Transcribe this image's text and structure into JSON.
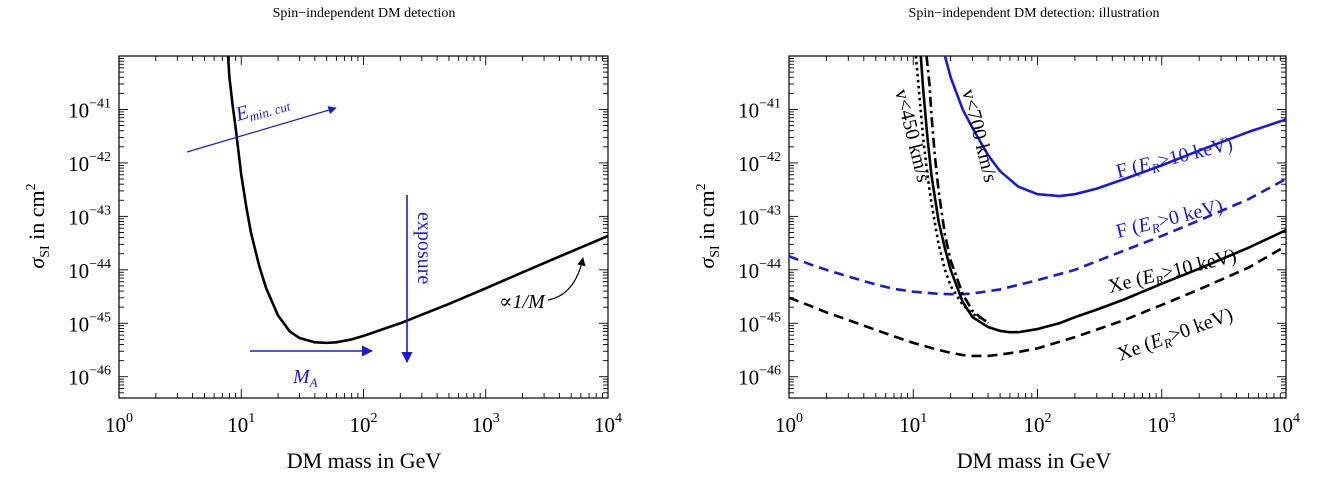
{
  "chart_data": [
    {
      "type": "line",
      "title": "Spin−independent DM detection",
      "xlabel": "DM mass in GeV",
      "ylabel_main": "σ",
      "ylabel_sub": "SI",
      "ylabel_rest": " in cm",
      "ylabel_sup": "2",
      "xscale": "log",
      "yscale": "log",
      "xlim": [
        1,
        10000
      ],
      "ylim": [
        4e-47,
        1e-40
      ],
      "xticks": [
        {
          "base": "10",
          "exp": "0",
          "v": 1
        },
        {
          "base": "10",
          "exp": "1",
          "v": 10
        },
        {
          "base": "10",
          "exp": "2",
          "v": 100
        },
        {
          "base": "10",
          "exp": "3",
          "v": 1000
        },
        {
          "base": "10",
          "exp": "4",
          "v": 10000
        }
      ],
      "yticks": [
        {
          "base": "10",
          "exp": "−46",
          "v": 1e-46
        },
        {
          "base": "10",
          "exp": "−45",
          "v": 1e-45
        },
        {
          "base": "10",
          "exp": "−44",
          "v": 1e-44
        },
        {
          "base": "10",
          "exp": "−43",
          "v": 1e-43
        },
        {
          "base": "10",
          "exp": "−42",
          "v": 1e-42
        },
        {
          "base": "10",
          "exp": "−41",
          "v": 1e-41
        }
      ],
      "series": [
        {
          "color": "#000000",
          "dash": "solid",
          "x": [
            7.8,
            8,
            8.5,
            9,
            10,
            11,
            12,
            14,
            16,
            20,
            25,
            30,
            40,
            50,
            60,
            80,
            100,
            150,
            200,
            300,
            500,
            1000,
            2000,
            5000,
            10000
          ],
          "y": [
            1e-40,
            4e-41,
            1.2e-41,
            4.5e-42,
            6e-43,
            1.5e-43,
            5e-44,
            1.2e-44,
            4.5e-45,
            1.4e-45,
            7e-46,
            5.3e-46,
            4.4e-46,
            4.3e-46,
            4.4e-46,
            5e-46,
            5.8e-46,
            8e-46,
            1e-45,
            1.45e-45,
            2.3e-45,
            4.5e-45,
            9e-45,
            2.2e-44,
            4.3e-44
          ]
        }
      ],
      "annotations": {
        "emin_main": "E",
        "emin_sub": "min. cut",
        "exposure": "exposure",
        "ma_main": "M",
        "ma_sub": "A",
        "scaling": "∝1/M"
      }
    },
    {
      "type": "line",
      "title": "Spin−independent DM detection: illustration",
      "xlabel": "DM mass in GeV",
      "ylabel_main": "σ",
      "ylabel_sub": "SI",
      "ylabel_rest": " in cm",
      "ylabel_sup": "2",
      "xscale": "log",
      "yscale": "log",
      "xlim": [
        1,
        10000
      ],
      "ylim": [
        4e-47,
        1e-40
      ],
      "xticks": [
        {
          "base": "10",
          "exp": "0",
          "v": 1
        },
        {
          "base": "10",
          "exp": "1",
          "v": 10
        },
        {
          "base": "10",
          "exp": "2",
          "v": 100
        },
        {
          "base": "10",
          "exp": "3",
          "v": 1000
        },
        {
          "base": "10",
          "exp": "4",
          "v": 10000
        }
      ],
      "yticks": [
        {
          "base": "10",
          "exp": "−46",
          "v": 1e-46
        },
        {
          "base": "10",
          "exp": "−45",
          "v": 1e-45
        },
        {
          "base": "10",
          "exp": "−44",
          "v": 1e-44
        },
        {
          "base": "10",
          "exp": "−43",
          "v": 1e-43
        },
        {
          "base": "10",
          "exp": "−42",
          "v": 1e-42
        },
        {
          "base": "10",
          "exp": "−41",
          "v": 1e-41
        }
      ],
      "series": [
        {
          "name": "F (E_R>10 keV)",
          "color": "#1a1ad6",
          "dash": "solid",
          "x": [
            18,
            20,
            25,
            30,
            40,
            50,
            70,
            100,
            150,
            200,
            300,
            500,
            1000,
            2000,
            5000,
            10000
          ],
          "y": [
            1e-40,
            4e-41,
            1e-41,
            4.5e-42,
            1.4e-42,
            7e-43,
            3.6e-43,
            2.6e-43,
            2.4e-43,
            2.6e-43,
            3.3e-43,
            5e-43,
            9e-43,
            1.7e-42,
            3.8e-42,
            6.5e-42
          ]
        },
        {
          "name": "F (E_R>0 keV)",
          "color": "#1a1ad6",
          "dash": "dashed",
          "x": [
            1,
            1.5,
            2,
            3,
            5,
            7,
            10,
            15,
            20,
            25,
            30,
            50,
            100,
            200,
            500,
            1000,
            2000,
            5000,
            10000
          ],
          "y": [
            1.8e-44,
            1.25e-44,
            1e-44,
            7.5e-45,
            5.3e-45,
            4.4e-45,
            3.9e-45,
            3.6e-45,
            3.5e-45,
            3.5e-45,
            3.6e-45,
            4.3e-45,
            6.4e-45,
            1e-44,
            2.3e-44,
            4.3e-44,
            8.4e-44,
            2.1e-43,
            5e-43
          ]
        },
        {
          "name": "Xe (E_R>10 keV)",
          "color": "#000000",
          "dash": "solid",
          "x": [
            11.5,
            12,
            13,
            14,
            16,
            18,
            20,
            25,
            30,
            40,
            50,
            60,
            70,
            100,
            150,
            200,
            300,
            500,
            1000,
            2000,
            5000,
            10000
          ],
          "y": [
            1e-40,
            2.5e-41,
            3e-42,
            6e-43,
            8e-44,
            2.5e-44,
            1e-44,
            2.5e-45,
            1.3e-45,
            8.5e-46,
            7.2e-46,
            6.8e-46,
            6.8e-46,
            7.8e-46,
            1e-45,
            1.3e-45,
            1.8e-45,
            2.8e-45,
            5.5e-45,
            1.05e-44,
            2.6e-44,
            5.5e-44
          ]
        },
        {
          "name": "Xe (E_R>0 keV)",
          "color": "#000000",
          "dash": "dashed",
          "x": [
            1,
            1.5,
            2,
            3,
            5,
            7,
            10,
            15,
            20,
            25,
            30,
            40,
            50,
            70,
            100,
            200,
            500,
            1000,
            2000,
            5000,
            10000
          ],
          "y": [
            3e-45,
            2.1e-45,
            1.6e-45,
            1.15e-45,
            7.5e-46,
            5.7e-46,
            4.3e-46,
            3.3e-46,
            2.8e-46,
            2.55e-46,
            2.45e-46,
            2.45e-46,
            2.6e-46,
            2.9e-46,
            3.4e-46,
            5.5e-46,
            1.15e-45,
            2.2e-45,
            4.3e-45,
            1.1e-44,
            2.8e-44
          ]
        },
        {
          "name": "v<450 km/s",
          "color": "#000000",
          "dash": "dotted",
          "x": [
            10.5,
            11,
            12,
            13,
            14,
            16,
            18,
            20,
            25,
            30,
            40
          ],
          "y": [
            1e-40,
            3e-41,
            3e-42,
            6e-43,
            1.8e-43,
            3e-44,
            1e-44,
            5e-45,
            2.2e-45,
            1.5e-45,
            1.05e-45
          ]
        },
        {
          "name": "v<700 km/s",
          "color": "#000000",
          "dash": "dashdot",
          "x": [
            12.8,
            13.5,
            14,
            15,
            16,
            18,
            20,
            25,
            30,
            40
          ],
          "y": [
            1e-40,
            3e-41,
            8e-42,
            1.2e-42,
            3e-43,
            4.5e-44,
            1.5e-44,
            3.5e-45,
            1.7e-45,
            1e-45
          ]
        }
      ],
      "labels": {
        "f10_pre": "F (",
        "f10_main": "E",
        "f10_sub": "R",
        "f10_post": ">10 keV)",
        "f0_pre": "F (",
        "f0_main": "E",
        "f0_sub": "R",
        "f0_post": ">0 keV)",
        "xe10_pre": "Xe (",
        "xe10_main": "E",
        "xe10_sub": "R",
        "xe10_post": ">10 keV)",
        "xe0_pre": "Xe (",
        "xe0_main": "E",
        "xe0_sub": "R",
        "xe0_post": ">0 keV)",
        "v450_a": "v<450 km",
        "v450_b": "/s",
        "v700_a": "v<700 km",
        "v700_b": "/s"
      }
    }
  ]
}
